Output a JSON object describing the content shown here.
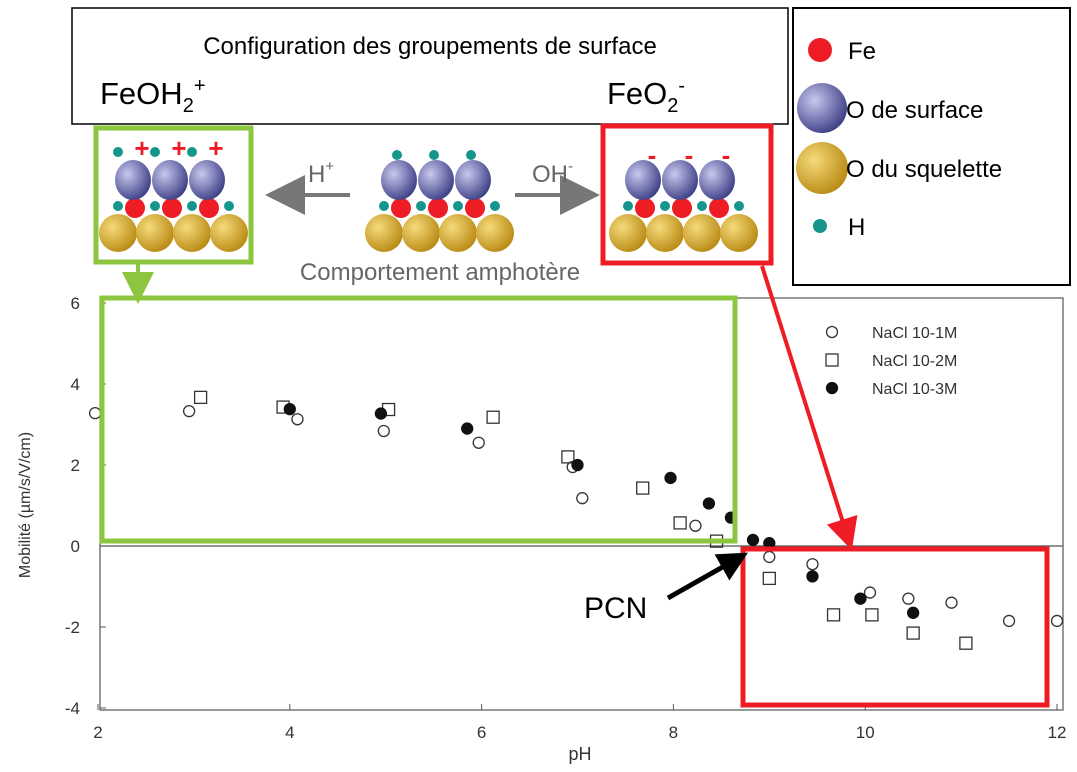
{
  "diagram": {
    "title": "Configuration des groupements de surface",
    "acid_form": {
      "base": "FeOH",
      "sub": "2",
      "sup": "+"
    },
    "basic_form": {
      "base": "FeO",
      "sub": "2",
      "sup": "-"
    },
    "acid_reagent": {
      "base": "H",
      "sup": "+"
    },
    "basic_reagent": {
      "base": "OH",
      "sup": "-"
    },
    "behavior": "Comportement amphotère",
    "charge_plus": "+",
    "charge_minus": "-",
    "legend": [
      "Fe",
      "O de surface",
      "O du squelette",
      "H"
    ],
    "pcn": "PCN"
  },
  "chart_data": {
    "type": "scatter",
    "x_label": "pH",
    "y_label": "Mobilité (µm/s/V/cm)",
    "xlim": [
      2,
      12
    ],
    "ylim": [
      -4,
      6
    ],
    "xticks": [
      2,
      4,
      6,
      8,
      10,
      12
    ],
    "yticks": [
      -4,
      -2,
      0,
      2,
      4,
      6
    ],
    "series": [
      {
        "name": "NaCl 10-1M",
        "marker": "open-circle",
        "color": "#333333",
        "x": [
          1.97,
          2.95,
          4.08,
          4.98,
          5.97,
          6.95,
          7.05,
          8.23,
          9.0,
          9.45,
          10.05,
          10.45,
          10.9,
          11.5,
          12.0
        ],
        "values": [
          3.28,
          3.33,
          3.13,
          2.84,
          2.55,
          1.95,
          1.18,
          0.5,
          -0.27,
          -0.45,
          -1.15,
          -1.3,
          -1.4,
          -1.85,
          -1.85
        ]
      },
      {
        "name": "NaCl 10-2M",
        "marker": "open-square",
        "color": "#333333",
        "x": [
          3.07,
          3.93,
          5.03,
          6.12,
          6.9,
          7.68,
          8.07,
          8.45,
          9.0,
          9.67,
          10.07,
          10.5,
          11.05
        ],
        "values": [
          3.67,
          3.43,
          3.37,
          3.18,
          2.2,
          1.43,
          0.57,
          0.12,
          -0.8,
          -1.7,
          -1.7,
          -2.15,
          -2.4
        ]
      },
      {
        "name": "NaCl 10-3M",
        "marker": "filled-circle",
        "color": "#111111",
        "x": [
          4.0,
          4.95,
          5.85,
          7.0,
          7.97,
          8.37,
          8.6,
          8.83,
          9.0,
          9.45,
          9.95,
          10.5
        ],
        "values": [
          3.38,
          3.27,
          2.9,
          2.0,
          1.68,
          1.05,
          0.7,
          0.15,
          0.07,
          -0.75,
          -1.3,
          -1.65
        ]
      }
    ]
  }
}
